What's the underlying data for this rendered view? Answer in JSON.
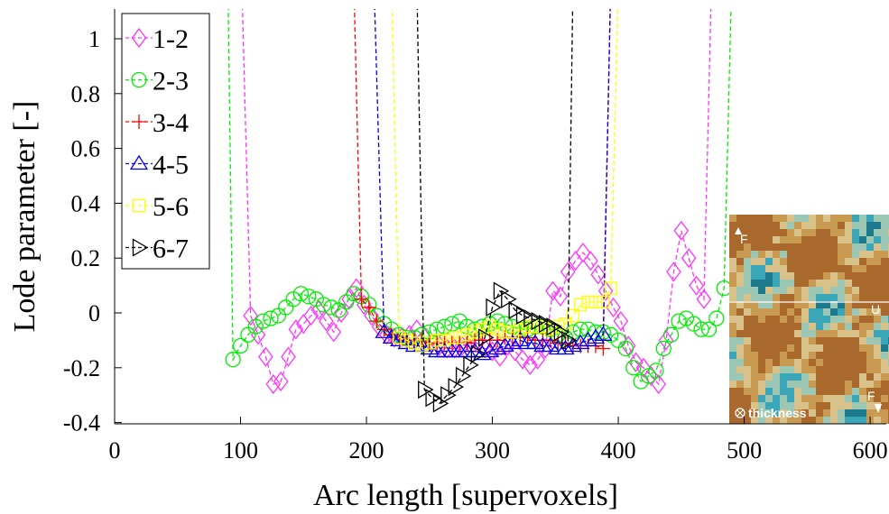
{
  "chart_data": {
    "type": "line",
    "xlabel": "Arc length [supervoxels]",
    "ylabel": "Lode parameter [-]",
    "xlim": [
      0,
      620
    ],
    "ylim": [
      -0.4,
      1.1
    ],
    "xticks": [
      0,
      100,
      200,
      300,
      400,
      500,
      600
    ],
    "yticks": [
      -0.4,
      -0.2,
      0,
      0.2,
      0.4,
      0.6,
      0.8,
      1
    ],
    "ytick_labels": [
      "-0.4",
      "-0.2",
      "0",
      "0.2",
      "0.4",
      "0.6",
      "0.8",
      "1"
    ],
    "legend_position": "top-left",
    "grid": false,
    "line_style": "dashed",
    "series": [
      {
        "name": "1-2",
        "color": "#ff33ff",
        "marker": "diamond",
        "x": [
          101,
          108,
          114,
          120,
          126,
          132,
          138,
          144,
          150,
          156,
          162,
          168,
          174,
          180,
          186,
          192,
          198,
          204,
          210,
          216,
          222,
          228,
          234,
          240,
          246,
          252,
          258,
          264,
          270,
          276,
          282,
          288,
          294,
          300,
          306,
          312,
          318,
          324,
          330,
          336,
          342,
          348,
          354,
          360,
          366,
          372,
          378,
          384,
          390,
          396,
          402,
          408,
          414,
          420,
          426,
          432,
          438,
          444,
          450,
          456,
          462,
          468,
          474,
          480
        ],
        "y": [
          1.2,
          -0.01,
          -0.08,
          -0.16,
          -0.26,
          -0.25,
          -0.16,
          -0.06,
          -0.04,
          -0.01,
          0.01,
          -0.03,
          -0.07,
          0.0,
          0.05,
          0.09,
          0.03,
          -0.01,
          -0.05,
          -0.08,
          -0.09,
          -0.09,
          -0.08,
          -0.06,
          -0.09,
          -0.11,
          -0.12,
          -0.13,
          -0.13,
          -0.12,
          -0.11,
          -0.11,
          -0.13,
          -0.14,
          -0.16,
          -0.12,
          -0.14,
          -0.17,
          -0.19,
          -0.17,
          -0.13,
          0.08,
          0.06,
          0.15,
          0.19,
          0.22,
          0.19,
          0.14,
          0.08,
          0.02,
          -0.03,
          -0.12,
          -0.18,
          -0.2,
          -0.23,
          -0.26,
          -0.1,
          0.15,
          0.3,
          0.2,
          0.1,
          0.05,
          1.2,
          1.2
        ]
      },
      {
        "name": "2-3",
        "color": "#00ee00",
        "marker": "circle",
        "x": [
          90,
          94,
          100,
          106,
          112,
          118,
          124,
          130,
          136,
          142,
          148,
          154,
          160,
          166,
          172,
          178,
          184,
          190,
          196,
          202,
          208,
          214,
          220,
          226,
          232,
          238,
          244,
          250,
          256,
          262,
          268,
          274,
          280,
          286,
          292,
          298,
          304,
          310,
          316,
          322,
          328,
          334,
          340,
          346,
          352,
          358,
          364,
          370,
          376,
          382,
          388,
          394,
          400,
          406,
          412,
          418,
          424,
          430,
          436,
          442,
          448,
          454,
          460,
          466,
          472,
          478,
          484,
          490
        ],
        "y": [
          1.2,
          -0.17,
          -0.12,
          -0.08,
          -0.05,
          -0.03,
          -0.02,
          -0.01,
          0.02,
          0.05,
          0.07,
          0.06,
          0.05,
          0.03,
          0.02,
          0.01,
          0.04,
          0.07,
          0.06,
          0.03,
          -0.01,
          -0.04,
          -0.06,
          -0.08,
          -0.09,
          -0.09,
          -0.08,
          -0.07,
          -0.06,
          -0.05,
          -0.04,
          -0.03,
          -0.05,
          -0.06,
          -0.05,
          -0.04,
          -0.03,
          -0.04,
          -0.05,
          -0.06,
          -0.06,
          -0.05,
          -0.05,
          -0.06,
          -0.08,
          -0.09,
          -0.07,
          -0.06,
          -0.06,
          -0.07,
          -0.07,
          -0.08,
          -0.1,
          -0.13,
          -0.2,
          -0.25,
          -0.23,
          -0.21,
          -0.13,
          -0.08,
          -0.03,
          -0.02,
          -0.04,
          -0.06,
          -0.06,
          -0.02,
          0.09,
          1.2
        ]
      },
      {
        "name": "3-4",
        "color": "#ff0000",
        "marker": "plus",
        "x": [
          190,
          196,
          202,
          208,
          214,
          220,
          226,
          232,
          238,
          244,
          250,
          256,
          262,
          268,
          274,
          280,
          286,
          292,
          298,
          304,
          310,
          316,
          322,
          328,
          334,
          340,
          346,
          352,
          358,
          364,
          370,
          376,
          382,
          388,
          394
        ],
        "y": [
          1.2,
          0.05,
          0.02,
          -0.03,
          -0.06,
          -0.08,
          -0.09,
          -0.1,
          -0.1,
          -0.1,
          -0.11,
          -0.11,
          -0.11,
          -0.11,
          -0.11,
          -0.11,
          -0.1,
          -0.1,
          -0.1,
          -0.1,
          -0.09,
          -0.09,
          -0.09,
          -0.09,
          -0.1,
          -0.1,
          -0.1,
          -0.11,
          -0.11,
          -0.12,
          -0.12,
          -0.12,
          -0.12,
          -0.13,
          1.2
        ]
      },
      {
        "name": "4-5",
        "color": "#0000ee",
        "marker": "triangle-up",
        "x": [
          206,
          214,
          220,
          226,
          232,
          238,
          244,
          250,
          256,
          262,
          268,
          274,
          280,
          286,
          292,
          298,
          304,
          310,
          316,
          322,
          328,
          334,
          340,
          346,
          352,
          358,
          364,
          370,
          376,
          382,
          388,
          394
        ],
        "y": [
          1.2,
          -0.07,
          -0.09,
          -0.1,
          -0.11,
          -0.12,
          -0.12,
          -0.13,
          -0.14,
          -0.14,
          -0.14,
          -0.14,
          -0.14,
          -0.14,
          -0.15,
          -0.14,
          -0.13,
          -0.12,
          -0.11,
          -0.1,
          -0.11,
          -0.11,
          -0.12,
          -0.12,
          -0.13,
          -0.13,
          -0.12,
          -0.11,
          -0.1,
          -0.09,
          -0.08,
          1.2
        ]
      },
      {
        "name": "5-6",
        "color": "#ffff00",
        "marker": "square",
        "x": [
          220,
          226,
          232,
          238,
          244,
          250,
          256,
          262,
          268,
          274,
          280,
          286,
          292,
          298,
          304,
          310,
          316,
          322,
          328,
          334,
          340,
          346,
          352,
          358,
          364,
          370,
          376,
          382,
          388,
          394,
          400
        ],
        "y": [
          1.2,
          -0.09,
          -0.1,
          -0.11,
          -0.12,
          -0.11,
          -0.1,
          -0.1,
          -0.09,
          -0.09,
          -0.08,
          -0.07,
          -0.06,
          -0.05,
          -0.06,
          -0.07,
          -0.07,
          -0.06,
          -0.05,
          -0.05,
          -0.05,
          -0.06,
          -0.05,
          -0.04,
          -0.01,
          0.03,
          0.04,
          0.04,
          0.04,
          0.09,
          1.2
        ]
      },
      {
        "name": "6-7",
        "color": "#000000",
        "marker": "triangle-right",
        "x": [
          240,
          246,
          252,
          258,
          264,
          270,
          276,
          282,
          288,
          294,
          300,
          306,
          312,
          318,
          324,
          330,
          336,
          342,
          348,
          354,
          360,
          364
        ],
        "y": [
          1.2,
          -0.28,
          -0.31,
          -0.33,
          -0.3,
          -0.27,
          -0.23,
          -0.19,
          -0.15,
          -0.09,
          0.02,
          0.08,
          0.05,
          0.01,
          -0.01,
          -0.02,
          -0.03,
          -0.04,
          -0.05,
          -0.07,
          -0.1,
          1.2
        ]
      }
    ]
  },
  "inset": {
    "label": "thickness",
    "marker_top": "F",
    "marker_right": "U",
    "marker_bottom": "F",
    "colors": [
      "#1c7a8c",
      "#3aa6b8",
      "#9cc7b4",
      "#d8c28a",
      "#c99a52",
      "#a9692c"
    ]
  }
}
